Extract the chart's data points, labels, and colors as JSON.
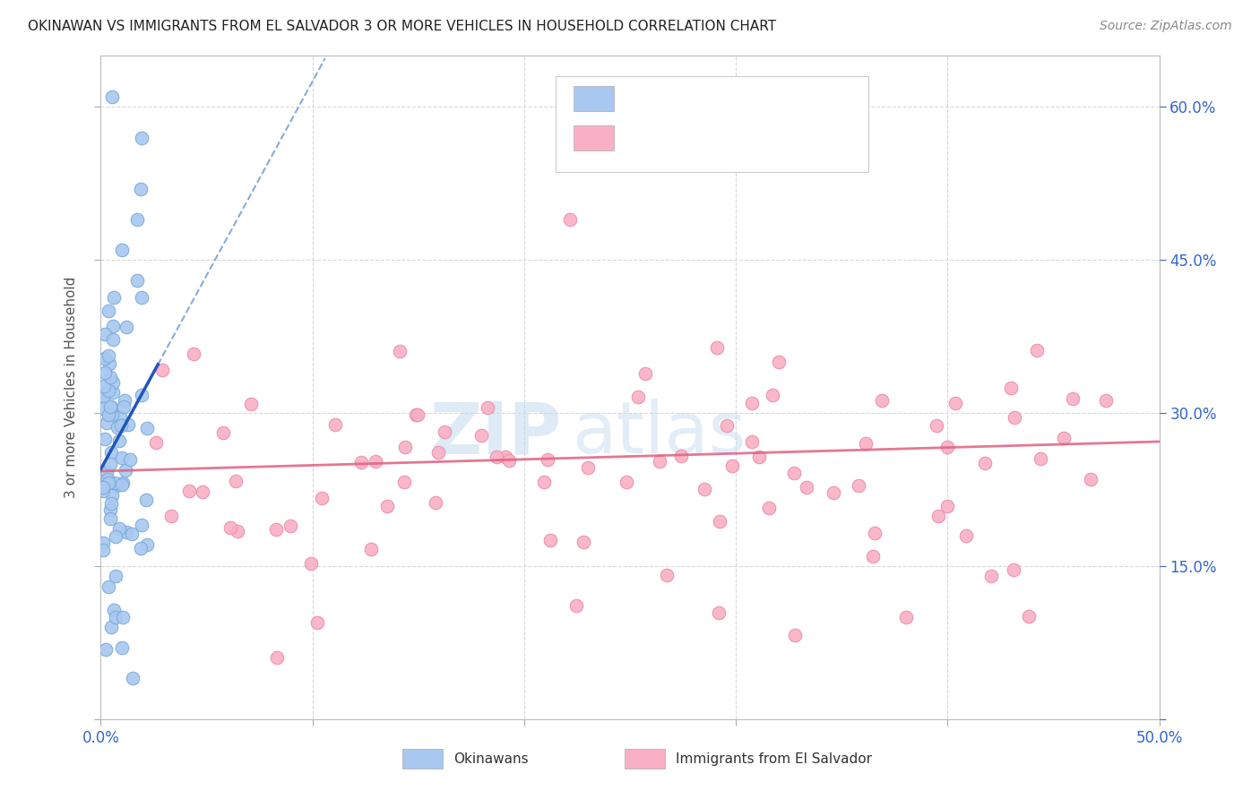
{
  "title": "OKINAWAN VS IMMIGRANTS FROM EL SALVADOR 3 OR MORE VEHICLES IN HOUSEHOLD CORRELATION CHART",
  "source": "Source: ZipAtlas.com",
  "ylabel": "3 or more Vehicles in Household",
  "xmin": 0.0,
  "xmax": 0.5,
  "ymin": 0.0,
  "ymax": 0.65,
  "color_okinawan": "#a8c8f0",
  "color_okinawan_edge": "#7aaad8",
  "color_salvador": "#f9b0c4",
  "color_salvador_edge": "#e890a8",
  "color_blue_text": "#3366cc",
  "color_grid": "#d8d8d8",
  "background_color": "#ffffff",
  "trend_ok_start_x": 0.0,
  "trend_ok_start_y": 0.245,
  "trend_ok_slope": 3.8,
  "trend_sal_start_x": 0.0,
  "trend_sal_start_y": 0.243,
  "trend_sal_end_x": 0.5,
  "trend_sal_end_y": 0.272,
  "watermark_zip_color": "#c8ddf0",
  "watermark_atlas_color": "#c8ddf0"
}
